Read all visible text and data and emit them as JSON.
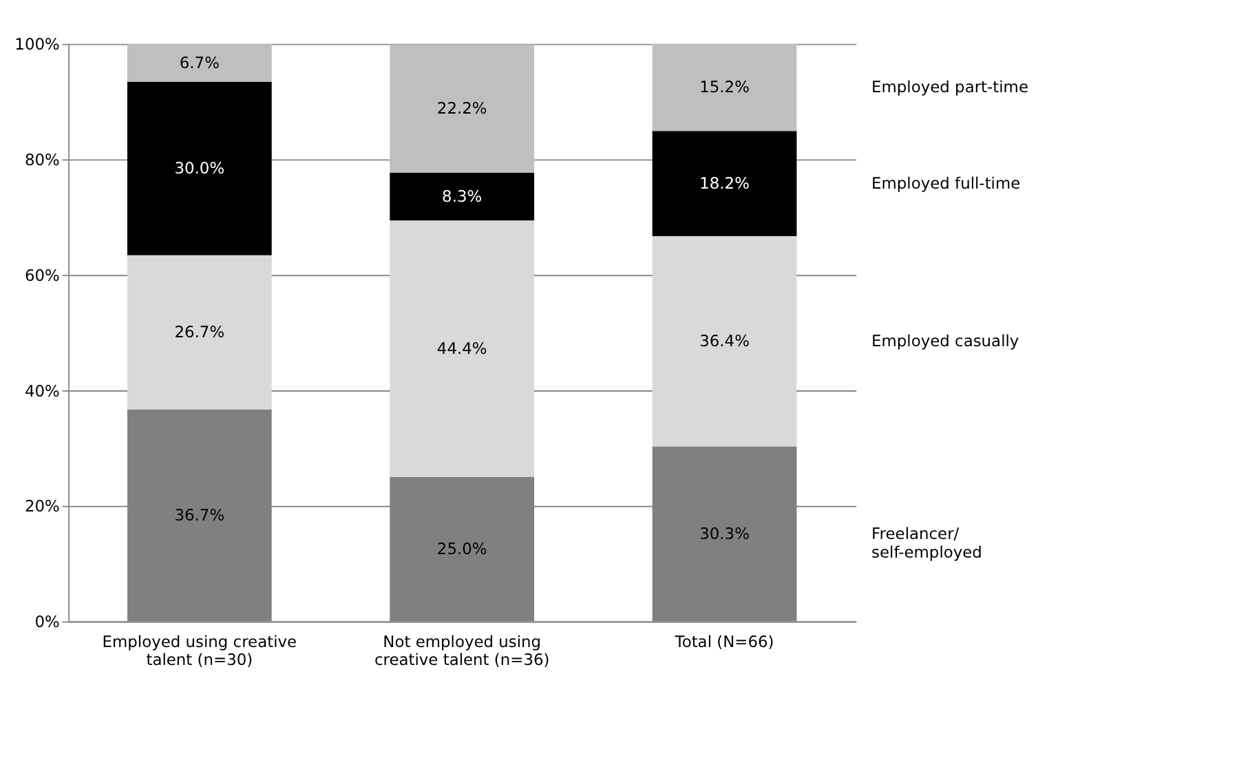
{
  "chart_data": {
    "type": "bar",
    "stacked": true,
    "categories": [
      "Employed using creative talent (n=30)",
      "Not employed using creative talent (n=36)",
      "Total (N=66)"
    ],
    "series": [
      {
        "name": "Freelancer/ self-employed",
        "color": "#808080",
        "values": [
          36.7,
          25.0,
          30.3
        ],
        "value_labels": [
          "36.7%",
          "25.0%",
          "30.3%"
        ]
      },
      {
        "name": "Employed casually",
        "color": "#d9d9d9",
        "values": [
          26.7,
          44.4,
          36.4
        ],
        "value_labels": [
          "26.7%",
          "44.4%",
          "36.4%"
        ]
      },
      {
        "name": "Employed full-time",
        "color": "#000000",
        "values": [
          30.0,
          8.3,
          18.2
        ],
        "value_labels": [
          "30.0%",
          "8.3%",
          "18.2%"
        ]
      },
      {
        "name": "Employed part-time",
        "color": "#bfbfbf",
        "values": [
          6.7,
          22.2,
          15.2
        ],
        "value_labels": [
          "6.7%",
          "22.2%",
          "15.2%"
        ]
      }
    ],
    "ylim": [
      0,
      100
    ],
    "yticks": [
      {
        "value": 0,
        "label": "0%"
      },
      {
        "value": 20,
        "label": "20%"
      },
      {
        "value": 40,
        "label": "40%"
      },
      {
        "value": 60,
        "label": "60%"
      },
      {
        "value": 80,
        "label": "80%"
      },
      {
        "value": 100,
        "label": "100%"
      }
    ],
    "grid": "y",
    "legend": false
  }
}
